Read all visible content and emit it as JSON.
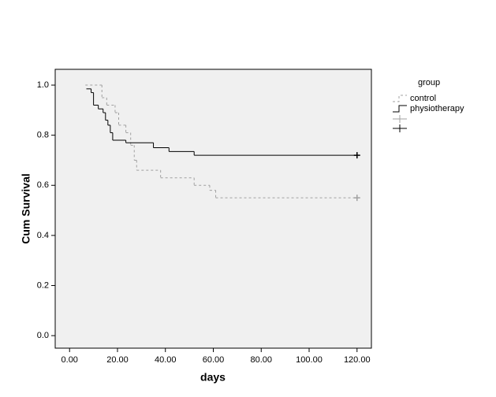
{
  "chart_data": {
    "type": "step",
    "x_label": "days",
    "y_label": "Cum Survival",
    "legend_title": "group",
    "xlim": [
      -6,
      126
    ],
    "ylim": [
      -0.05,
      1.063
    ],
    "xticks": [
      {
        "value": 0,
        "label": "0.00"
      },
      {
        "value": 20,
        "label": "20.00"
      },
      {
        "value": 40,
        "label": "40.00"
      },
      {
        "value": 60,
        "label": "60.00"
      },
      {
        "value": 80,
        "label": "80.00"
      },
      {
        "value": 100,
        "label": "100.00"
      },
      {
        "value": 120,
        "label": "120.00"
      }
    ],
    "yticks": [
      {
        "value": 0,
        "label": "0.0"
      },
      {
        "value": 0.2,
        "label": "0.2"
      },
      {
        "value": 0.4,
        "label": "0.4"
      },
      {
        "value": 0.6,
        "label": "0.6"
      },
      {
        "value": 0.8,
        "label": "0.8"
      },
      {
        "value": 1,
        "label": "1.0"
      }
    ],
    "series": [
      {
        "name": "control",
        "color": "#a0a0a0",
        "dashed": true,
        "x": [
          6.6,
          13.5,
          15.5,
          19,
          20.5,
          23.5,
          25.5,
          27,
          28,
          38,
          52,
          58.5,
          61,
          120
        ],
        "values": [
          1.0,
          0.95,
          0.92,
          0.89,
          0.84,
          0.81,
          0.76,
          0.7,
          0.66,
          0.63,
          0.6,
          0.58,
          0.55,
          0.55
        ]
      },
      {
        "name": "physiotherapy",
        "color": "#000000",
        "dashed": false,
        "x": [
          7,
          9,
          10,
          12,
          14,
          15,
          16,
          17,
          18,
          23.5,
          35,
          41.5,
          52,
          120
        ],
        "values": [
          0.985,
          0.97,
          0.92,
          0.905,
          0.89,
          0.86,
          0.84,
          0.81,
          0.78,
          0.77,
          0.75,
          0.735,
          0.72,
          0.72
        ]
      }
    ]
  }
}
